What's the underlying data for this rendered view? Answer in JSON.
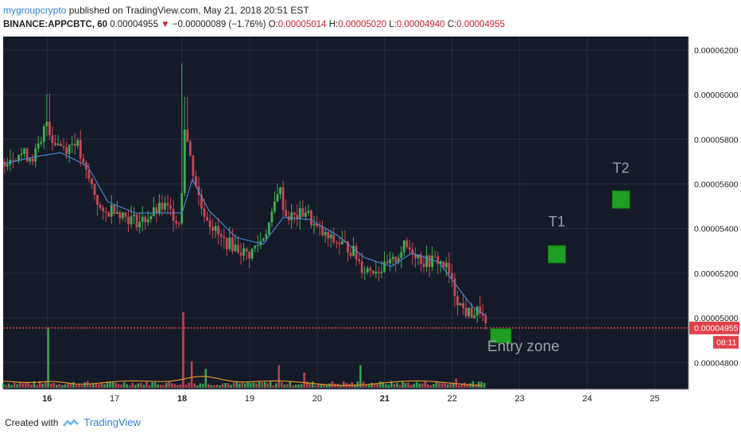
{
  "header": {
    "user": "mygroupcrypto",
    "published_text": "published on TradingView.com, May 21, 2018 20:51 EST",
    "symbol": "BINANCE:APPCBTC, 60",
    "last": "0.00004955",
    "change_arrow": "▼",
    "change": "−0.00000089 (−1.76%)",
    "o_label": "O:",
    "o_value": "0.00005014",
    "h_label": "H:",
    "h_value": "0.00005020",
    "l_label": "L:",
    "l_value": "0.00004940",
    "c_label": "C:",
    "c_value": "0.00004955"
  },
  "footer": {
    "created_with": "Created with",
    "brand": "TradingView",
    "logo_icon": "tradingview-logo-icon"
  },
  "colors": {
    "background": "#151a28",
    "grid": "#262c3d",
    "up": "#3fae53",
    "down": "#c94757",
    "ma": "#4a86d8",
    "volume_ma": "#e0922c",
    "price_line": "#e0404a",
    "target_box": "#1e9e22",
    "annotation_text": "#9aa0a8"
  },
  "chart_data": {
    "type": "candlestick",
    "x_tick_labels": [
      "16",
      "17",
      "18",
      "19",
      "20",
      "21",
      "22",
      "23",
      "24",
      "25"
    ],
    "x_ticks": [
      16,
      17,
      18,
      19,
      20,
      21,
      22,
      23,
      24,
      25
    ],
    "x_bold_ticks": [
      16,
      18,
      21
    ],
    "x_range": [
      15.35,
      25.5
    ],
    "y_range": [
      4.68e-05,
      6.26e-05
    ],
    "y_ticks": [
      4.8e-05,
      5e-05,
      5.2e-05,
      5.4e-05,
      5.6e-05,
      5.8e-05,
      6e-05,
      6.2e-05
    ],
    "y_tick_labels": [
      "0.00004800",
      "0.00005000",
      "0.00005200",
      "0.00005400",
      "0.00005600",
      "0.00005800",
      "0.00006000",
      "0.00006200"
    ],
    "current_price": 4.955e-05,
    "current_price_label": "0.00004955",
    "countdown_label": "08:11",
    "grid": true,
    "price_path": [
      [
        15.35,
        5.7
      ],
      [
        15.6,
        5.74
      ],
      [
        15.8,
        5.72
      ],
      [
        15.95,
        5.78
      ],
      [
        16.0,
        5.9
      ],
      [
        16.1,
        5.8
      ],
      [
        16.3,
        5.76
      ],
      [
        16.45,
        5.8
      ],
      [
        16.55,
        5.68
      ],
      [
        16.7,
        5.58
      ],
      [
        16.85,
        5.45
      ],
      [
        17.0,
        5.5
      ],
      [
        17.2,
        5.45
      ],
      [
        17.4,
        5.43
      ],
      [
        17.55,
        5.46
      ],
      [
        17.75,
        5.5
      ],
      [
        17.9,
        5.46
      ],
      [
        18.0,
        5.42
      ],
      [
        18.05,
        5.88
      ],
      [
        18.15,
        5.7
      ],
      [
        18.3,
        5.5
      ],
      [
        18.45,
        5.42
      ],
      [
        18.6,
        5.35
      ],
      [
        18.8,
        5.32
      ],
      [
        19.0,
        5.28
      ],
      [
        19.2,
        5.35
      ],
      [
        19.35,
        5.45
      ],
      [
        19.45,
        5.6
      ],
      [
        19.55,
        5.46
      ],
      [
        19.7,
        5.45
      ],
      [
        19.85,
        5.48
      ],
      [
        20.0,
        5.4
      ],
      [
        20.2,
        5.35
      ],
      [
        20.4,
        5.33
      ],
      [
        20.55,
        5.3
      ],
      [
        20.7,
        5.22
      ],
      [
        20.85,
        5.22
      ],
      [
        21.0,
        5.22
      ],
      [
        21.15,
        5.25
      ],
      [
        21.3,
        5.32
      ],
      [
        21.45,
        5.3
      ],
      [
        21.6,
        5.25
      ],
      [
        21.8,
        5.26
      ],
      [
        21.95,
        5.22
      ],
      [
        22.05,
        5.12
      ],
      [
        22.15,
        5.05
      ],
      [
        22.25,
        5.02
      ],
      [
        22.35,
        5.02
      ],
      [
        22.45,
        5.04
      ],
      [
        22.5,
        4.955
      ]
    ],
    "ma_path": [
      [
        15.35,
        5.69
      ],
      [
        15.8,
        5.72
      ],
      [
        16.2,
        5.74
      ],
      [
        16.6,
        5.68
      ],
      [
        16.9,
        5.52
      ],
      [
        17.3,
        5.47
      ],
      [
        17.8,
        5.47
      ],
      [
        18.0,
        5.47
      ],
      [
        18.15,
        5.62
      ],
      [
        18.4,
        5.48
      ],
      [
        18.8,
        5.36
      ],
      [
        19.2,
        5.33
      ],
      [
        19.5,
        5.45
      ],
      [
        19.9,
        5.44
      ],
      [
        20.3,
        5.37
      ],
      [
        20.7,
        5.27
      ],
      [
        21.1,
        5.23
      ],
      [
        21.4,
        5.29
      ],
      [
        21.8,
        5.25
      ],
      [
        22.1,
        5.13
      ],
      [
        22.3,
        5.05
      ],
      [
        22.5,
        5.01
      ]
    ],
    "volume_spikes": [
      [
        16.0,
        0.8
      ],
      [
        18.0,
        1.0
      ],
      [
        18.15,
        0.35
      ],
      [
        18.35,
        0.25
      ],
      [
        19.45,
        0.3
      ],
      [
        20.65,
        0.3
      ],
      [
        19.8,
        0.2
      ],
      [
        22.05,
        0.12
      ]
    ],
    "annotations": [
      {
        "label": "T1",
        "x": 23.55,
        "y": 5.285e-05,
        "label_y": 5.41e-05
      },
      {
        "label": "T2",
        "x": 24.5,
        "y": 5.53e-05,
        "label_y": 5.65e-05
      },
      {
        "label": "Entry zone",
        "x": 22.72,
        "y": 4.92e-05,
        "label_y": 4.85e-05
      }
    ]
  }
}
